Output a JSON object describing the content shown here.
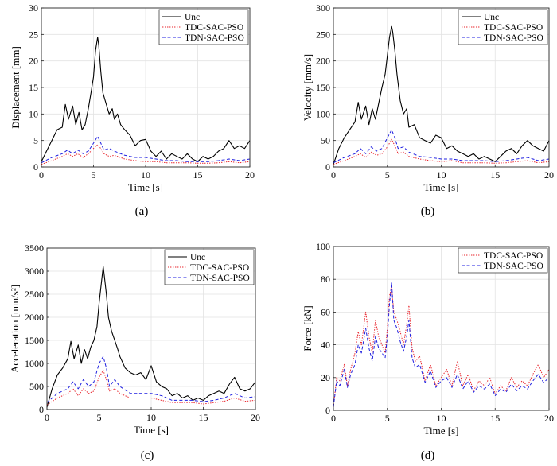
{
  "figure": {
    "series_colors": {
      "Unc": "#000000",
      "TDC-SAC-PSO": "#e8222a",
      "TDN-SAC-PSO": "#1f1fe0"
    }
  },
  "chart_data": [
    {
      "panel_label": "(a)",
      "type": "line",
      "xlabel": "Time [s]",
      "ylabel": "Displacement [mm]",
      "xlim": [
        0,
        20
      ],
      "ylim": [
        0,
        30
      ],
      "xticks": [
        0,
        5,
        10,
        15,
        20
      ],
      "yticks": [
        0,
        5,
        10,
        15,
        20,
        25,
        30
      ],
      "grid": true,
      "legend_position": "top-right",
      "series": [
        {
          "name": "Unc",
          "style": "solid",
          "x": [
            0,
            0.5,
            1,
            1.5,
            2,
            2.3,
            2.6,
            3,
            3.3,
            3.6,
            3.9,
            4.2,
            4.5,
            4.8,
            5,
            5.2,
            5.4,
            5.5,
            5.7,
            5.9,
            6.2,
            6.5,
            6.8,
            7,
            7.3,
            7.6,
            8,
            8.5,
            9,
            9.5,
            10,
            10.5,
            11,
            11.5,
            12,
            12.5,
            13,
            13.5,
            14,
            14.5,
            15,
            15.5,
            16,
            16.5,
            17,
            17.5,
            18,
            18.5,
            19,
            19.5,
            20
          ],
          "y": [
            1,
            3,
            5,
            7,
            7.5,
            11.8,
            9,
            11.5,
            8,
            10.3,
            7,
            8,
            11,
            14.5,
            17,
            22,
            24.5,
            23,
            18,
            14,
            12,
            10,
            11,
            9,
            10,
            8,
            7,
            6,
            4,
            5,
            5.2,
            3,
            2,
            3,
            1.5,
            2.5,
            2,
            1.5,
            2.5,
            1.5,
            1,
            2,
            1.5,
            2,
            3,
            3.5,
            5,
            3.5,
            4,
            3.5,
            5
          ]
        },
        {
          "name": "TDC-SAC-PSO",
          "style": "dotted",
          "x": [
            0,
            1,
            2,
            2.5,
            3,
            3.5,
            4,
            4.5,
            5,
            5.4,
            5.7,
            6,
            6.5,
            7,
            8,
            9,
            10,
            11,
            12,
            13,
            14,
            15,
            16,
            17,
            18,
            19,
            20
          ],
          "y": [
            0.5,
            1.2,
            2,
            2.5,
            2,
            2.5,
            1.8,
            2.5,
            3.5,
            4.2,
            3.5,
            2.5,
            2,
            2.2,
            1.5,
            1.2,
            1,
            1,
            0.8,
            0.8,
            0.8,
            0.7,
            0.7,
            0.8,
            1,
            0.8,
            1
          ]
        },
        {
          "name": "TDN-SAC-PSO",
          "style": "dashed",
          "x": [
            0,
            1,
            2,
            2.5,
            3,
            3.5,
            4,
            4.5,
            5,
            5.4,
            5.7,
            6,
            6.5,
            7,
            8,
            9,
            10,
            11,
            12,
            13,
            14,
            15,
            16,
            17,
            18,
            19,
            20
          ],
          "y": [
            0.8,
            1.8,
            2.5,
            3.2,
            2.5,
            3.2,
            2.5,
            3,
            4.5,
            5.8,
            4.5,
            3.2,
            3.5,
            3,
            2.2,
            1.8,
            1.8,
            1.5,
            1.2,
            1.2,
            1,
            1,
            1,
            1.2,
            1.5,
            1.2,
            1.5
          ]
        }
      ]
    },
    {
      "panel_label": "(b)",
      "type": "line",
      "xlabel": "Time [s]",
      "ylabel": "Velocity [mm/s]",
      "xlim": [
        0,
        20
      ],
      "ylim": [
        0,
        300
      ],
      "xticks": [
        0,
        5,
        10,
        15,
        20
      ],
      "yticks": [
        0,
        50,
        100,
        150,
        200,
        250,
        300
      ],
      "grid": true,
      "legend_position": "top-right",
      "series": [
        {
          "name": "Unc",
          "style": "solid",
          "x": [
            0,
            0.5,
            1,
            1.5,
            2,
            2.3,
            2.6,
            3,
            3.3,
            3.6,
            3.9,
            4.2,
            4.5,
            4.8,
            5,
            5.2,
            5.4,
            5.5,
            5.7,
            5.9,
            6.2,
            6.5,
            6.8,
            7,
            7.5,
            8,
            8.5,
            9,
            9.5,
            10,
            10.5,
            11,
            11.5,
            12,
            12.5,
            13,
            13.5,
            14,
            14.5,
            15,
            15.5,
            16,
            16.5,
            17,
            17.5,
            18,
            18.5,
            19,
            19.5,
            20
          ],
          "y": [
            5,
            35,
            55,
            70,
            85,
            122,
            90,
            115,
            80,
            110,
            90,
            120,
            150,
            175,
            210,
            245,
            265,
            255,
            220,
            175,
            125,
            100,
            110,
            75,
            80,
            55,
            50,
            45,
            60,
            55,
            35,
            40,
            30,
            25,
            20,
            25,
            15,
            20,
            15,
            10,
            20,
            30,
            35,
            25,
            40,
            50,
            40,
            35,
            30,
            50
          ]
        },
        {
          "name": "TDC-SAC-PSO",
          "style": "dotted",
          "x": [
            0,
            1,
            2,
            2.5,
            3,
            3.5,
            4,
            4.5,
            5,
            5.4,
            5.7,
            6,
            6.5,
            7,
            8,
            9,
            10,
            11,
            12,
            13,
            14,
            15,
            16,
            17,
            18,
            19,
            20
          ],
          "y": [
            5,
            12,
            20,
            25,
            18,
            28,
            22,
            25,
            38,
            52,
            40,
            25,
            28,
            20,
            15,
            12,
            10,
            12,
            8,
            8,
            8,
            7,
            8,
            10,
            12,
            8,
            10
          ]
        },
        {
          "name": "TDN-SAC-PSO",
          "style": "dashed",
          "x": [
            0,
            1,
            2,
            2.5,
            3,
            3.5,
            4,
            4.5,
            5,
            5.4,
            5.7,
            6,
            6.5,
            7,
            8,
            9,
            10,
            11,
            12,
            13,
            14,
            15,
            16,
            17,
            18,
            19,
            20
          ],
          "y": [
            8,
            18,
            25,
            35,
            25,
            38,
            30,
            35,
            55,
            70,
            55,
            35,
            38,
            28,
            20,
            18,
            15,
            15,
            12,
            12,
            12,
            10,
            12,
            15,
            18,
            12,
            15
          ]
        }
      ]
    },
    {
      "panel_label": "(c)",
      "type": "line",
      "xlabel": "Time [s]",
      "ylabel": "Acceleration [mm/s²]",
      "xlim": [
        0,
        20
      ],
      "ylim": [
        0,
        3500
      ],
      "xticks": [
        0,
        5,
        10,
        15,
        20
      ],
      "yticks": [
        0,
        500,
        1000,
        1500,
        2000,
        2500,
        3000,
        3500
      ],
      "grid": true,
      "legend_position": "top-right",
      "series": [
        {
          "name": "Unc",
          "style": "solid",
          "x": [
            0,
            0.5,
            1,
            1.5,
            2,
            2.3,
            2.6,
            3,
            3.3,
            3.6,
            3.9,
            4.2,
            4.5,
            4.8,
            5,
            5.2,
            5.4,
            5.5,
            5.7,
            5.9,
            6.2,
            6.5,
            6.8,
            7,
            7.5,
            8,
            8.5,
            9,
            9.5,
            10,
            10.5,
            11,
            11.5,
            12,
            12.5,
            13,
            13.5,
            14,
            14.5,
            15,
            15.5,
            16,
            16.5,
            17,
            17.5,
            18,
            18.5,
            19,
            19.5,
            20
          ],
          "y": [
            50,
            450,
            750,
            900,
            1100,
            1480,
            1100,
            1400,
            1000,
            1300,
            1100,
            1350,
            1500,
            1800,
            2300,
            2700,
            3100,
            2900,
            2500,
            2000,
            1700,
            1500,
            1300,
            1150,
            900,
            800,
            750,
            800,
            650,
            950,
            600,
            500,
            450,
            300,
            350,
            250,
            300,
            200,
            250,
            200,
            300,
            350,
            400,
            350,
            550,
            700,
            450,
            400,
            450,
            600
          ]
        },
        {
          "name": "TDC-SAC-PSO",
          "style": "dotted",
          "x": [
            0,
            1,
            2,
            2.5,
            3,
            3.5,
            4,
            4.5,
            5,
            5.4,
            5.7,
            6,
            6.5,
            7,
            8,
            9,
            10,
            11,
            12,
            13,
            14,
            15,
            16,
            17,
            18,
            19,
            20
          ],
          "y": [
            100,
            250,
            350,
            450,
            300,
            450,
            350,
            400,
            700,
            850,
            650,
            400,
            450,
            350,
            250,
            250,
            250,
            200,
            150,
            150,
            150,
            120,
            150,
            180,
            250,
            180,
            200
          ]
        },
        {
          "name": "TDN-SAC-PSO",
          "style": "dashed",
          "x": [
            0,
            1,
            2,
            2.5,
            3,
            3.5,
            4,
            4.5,
            5,
            5.4,
            5.7,
            6,
            6.5,
            7,
            8,
            9,
            10,
            11,
            12,
            13,
            14,
            15,
            16,
            17,
            18,
            19,
            20
          ],
          "y": [
            150,
            350,
            450,
            600,
            450,
            650,
            500,
            600,
            1000,
            1150,
            900,
            500,
            650,
            500,
            350,
            350,
            350,
            300,
            200,
            200,
            200,
            170,
            200,
            250,
            350,
            250,
            280
          ]
        }
      ]
    },
    {
      "panel_label": "(d)",
      "type": "line",
      "xlabel": "Time [s]",
      "ylabel": "Force [kN]",
      "xlim": [
        0,
        20
      ],
      "ylim": [
        0,
        100
      ],
      "xticks": [
        0,
        5,
        10,
        15,
        20
      ],
      "yticks": [
        0,
        20,
        40,
        60,
        80,
        100
      ],
      "grid": true,
      "legend_position": "top-right",
      "series": [
        {
          "name": "TDC-SAC-PSO",
          "style": "dotted",
          "x": [
            0,
            0.3,
            0.6,
            1,
            1.3,
            1.6,
            2,
            2.3,
            2.6,
            3,
            3.3,
            3.6,
            3.9,
            4.2,
            4.5,
            4.8,
            5,
            5.2,
            5.4,
            5.6,
            5.9,
            6.2,
            6.5,
            6.8,
            7,
            7.3,
            7.6,
            8,
            8.5,
            9,
            9.5,
            10,
            10.5,
            11,
            11.5,
            12,
            12.5,
            13,
            13.5,
            14,
            14.5,
            15,
            15.5,
            16,
            16.5,
            17,
            17.5,
            18,
            18.5,
            19,
            19.5,
            20
          ],
          "y": [
            2,
            20,
            18,
            28,
            15,
            25,
            35,
            48,
            40,
            60,
            45,
            35,
            55,
            45,
            40,
            35,
            50,
            70,
            75,
            60,
            55,
            48,
            40,
            52,
            64,
            38,
            30,
            33,
            18,
            28,
            15,
            20,
            25,
            15,
            30,
            15,
            22,
            12,
            18,
            15,
            20,
            10,
            15,
            12,
            20,
            14,
            18,
            15,
            22,
            28,
            20,
            25
          ]
        },
        {
          "name": "TDN-SAC-PSO",
          "style": "dashed",
          "x": [
            0,
            0.3,
            0.6,
            1,
            1.3,
            1.6,
            2,
            2.3,
            2.6,
            3,
            3.3,
            3.6,
            3.9,
            4.2,
            4.5,
            4.8,
            5,
            5.2,
            5.4,
            5.6,
            5.9,
            6.2,
            6.5,
            6.8,
            7,
            7.3,
            7.6,
            8,
            8.5,
            9,
            9.5,
            10,
            10.5,
            11,
            11.5,
            12,
            12.5,
            13,
            13.5,
            14,
            14.5,
            15,
            15.5,
            16,
            16.5,
            17,
            17.5,
            18,
            18.5,
            19,
            19.5,
            20
          ],
          "y": [
            2,
            18,
            15,
            25,
            14,
            22,
            28,
            40,
            35,
            50,
            38,
            30,
            45,
            38,
            35,
            32,
            45,
            65,
            78,
            55,
            50,
            42,
            36,
            45,
            55,
            32,
            26,
            28,
            17,
            24,
            14,
            18,
            20,
            14,
            22,
            13,
            18,
            11,
            15,
            13,
            16,
            9,
            13,
            11,
            16,
            12,
            15,
            13,
            18,
            22,
            17,
            20
          ]
        }
      ]
    }
  ]
}
